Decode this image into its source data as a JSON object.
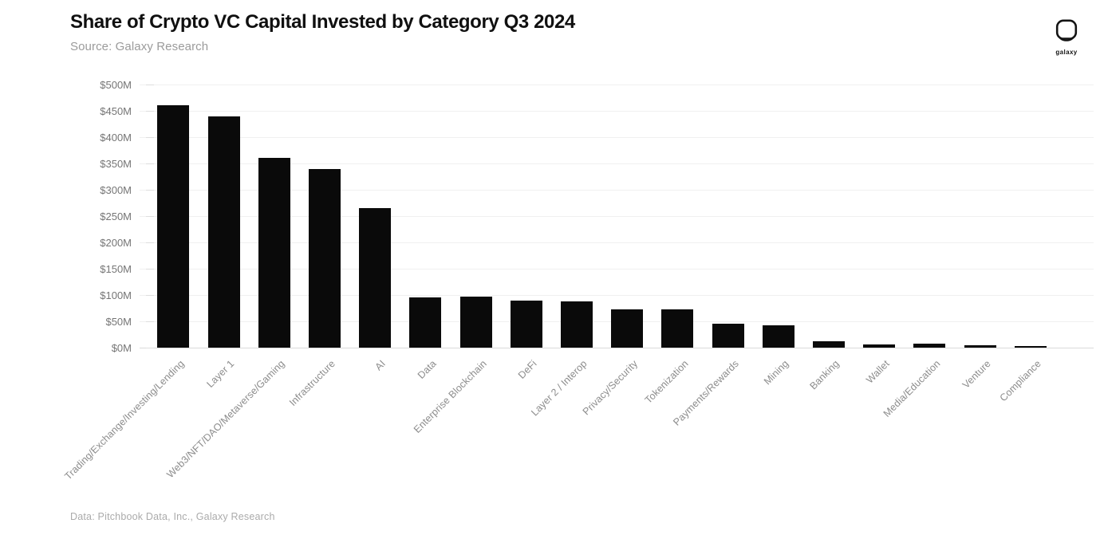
{
  "header": {
    "title": "Share of Crypto VC Capital Invested by Category Q3 2024",
    "subtitle": "Source: Galaxy Research"
  },
  "brand": {
    "wordmark": "galaxy"
  },
  "footer": {
    "source_note": "Data: Pitchbook Data, Inc., Galaxy Research"
  },
  "chart_data": {
    "type": "bar",
    "title": "Share of Crypto VC Capital Invested by Category Q3 2024",
    "subtitle": "Source: Galaxy Research",
    "unit": "$M",
    "categories": [
      "Trading/Exchange/Investing/Lending",
      "Layer 1",
      "Web3/NFT/DAO/Metaverse/Gaming",
      "Infrastructure",
      "AI",
      "Data",
      "Enterprise Blockchain",
      "DeFi",
      "Layer 2 / Interop",
      "Privacy/Security",
      "Tokenization",
      "Payments/Rewards",
      "Mining",
      "Banking",
      "Wallet",
      "Media/Education",
      "Venture",
      "Compliance"
    ],
    "values": [
      460,
      440,
      360,
      340,
      265,
      95,
      97,
      90,
      88,
      72,
      73,
      45,
      43,
      12,
      6,
      8,
      5,
      3
    ],
    "xlabel": "",
    "ylabel": "",
    "ylim": [
      0,
      500
    ],
    "ytick_values": [
      500,
      450,
      400,
      350,
      300,
      250,
      200,
      150,
      100,
      50,
      0
    ],
    "ytick_labels": [
      "$500M",
      "$450M",
      "$400M",
      "$350M",
      "$300M",
      "$250M",
      "$200M",
      "$150M",
      "$100M",
      "$50M",
      "$0M"
    ],
    "grid": "horizontal",
    "legend": "none",
    "bar_color": "#0a0a0a",
    "grid_color": "#f0f0f0",
    "axis_line_color": "#d9d9d9",
    "ytick_text_color": "#757575",
    "xtick_text_color": "#8c8c8c"
  }
}
